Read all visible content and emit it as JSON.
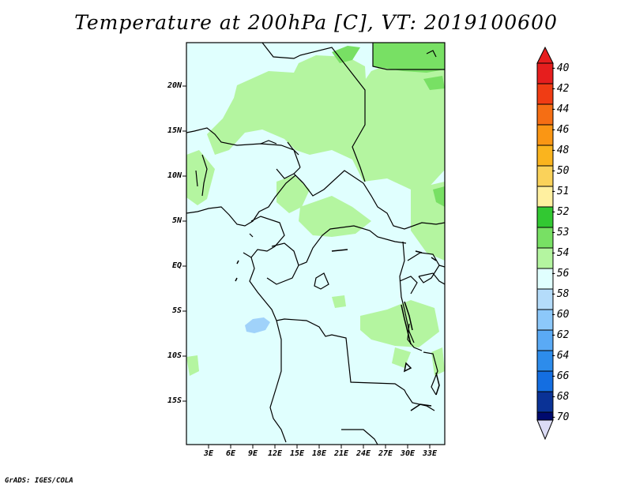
{
  "title": "Temperature at 200hPa [C], VT: 2019100600",
  "credit": "GrADS: IGES/COLA",
  "map": {
    "lat_labels": [
      "20N",
      "15N",
      "10N",
      "5N",
      "EQ",
      "5S",
      "10S",
      "15S"
    ],
    "lon_labels": [
      "3E",
      "6E",
      "9E",
      "12E",
      "15E",
      "18E",
      "21E",
      "24E",
      "27E",
      "30E",
      "33E"
    ],
    "lat_range": [
      -20,
      25
    ],
    "lon_range": [
      0,
      35
    ],
    "background_fill": "#e0fffe",
    "field_colors": {
      "light_green": "#b4f5a0",
      "green": "#78e064",
      "light_blue": "#a0d2fa"
    }
  },
  "colorbar": {
    "levels": [
      "-40",
      "-42",
      "-44",
      "-46",
      "-48",
      "-50",
      "-51",
      "-52",
      "-53",
      "-54",
      "-56",
      "-58",
      "-60",
      "-62",
      "-64",
      "-66",
      "-68",
      "-70"
    ],
    "colors": [
      "#e61e1e",
      "#f03c14",
      "#f56e14",
      "#fa9614",
      "#fab41e",
      "#fad25a",
      "#fff0a0",
      "#32c832",
      "#78e064",
      "#b4f5a0",
      "#e0fffe",
      "#b4dcfa",
      "#8cc8fa",
      "#5aaaf5",
      "#2d8ceb",
      "#146ee1",
      "#0a50be",
      "#0a3296",
      "#000a6e",
      "#dcdcf5"
    ]
  }
}
